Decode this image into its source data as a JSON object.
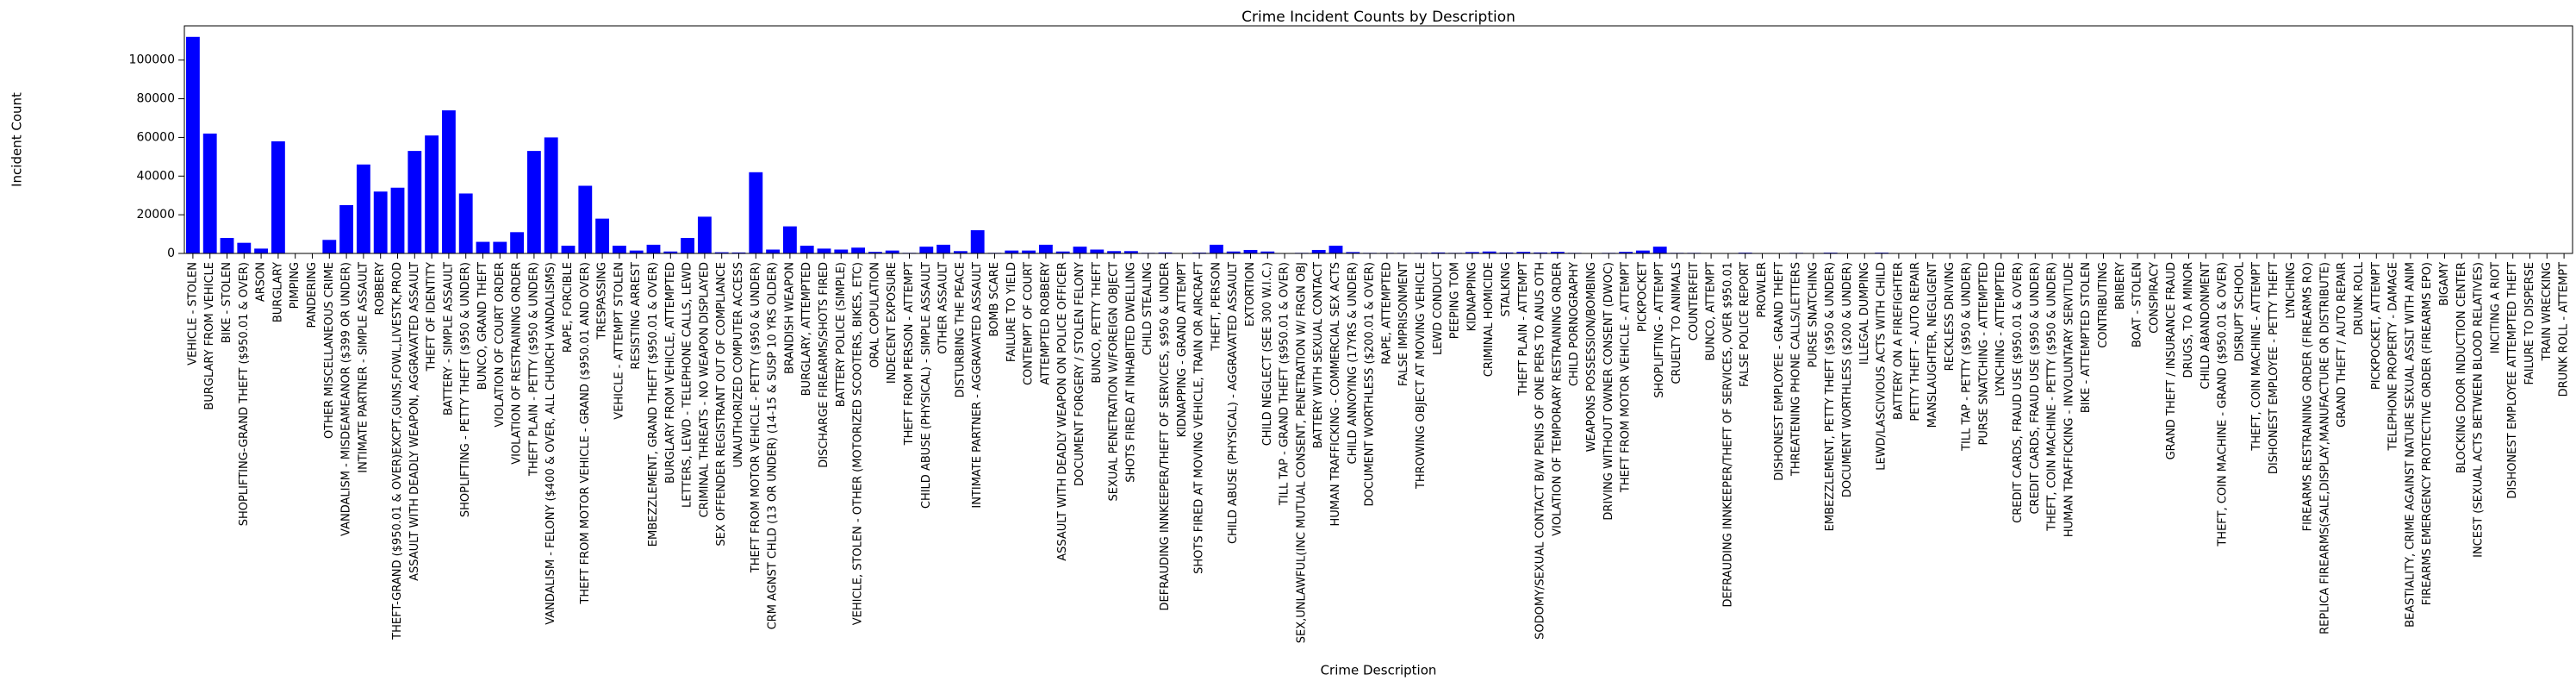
{
  "chart_data": {
    "type": "bar",
    "title": "Crime Incident Counts by Description",
    "x_label": "Crime Description",
    "y_label": "Incident Count",
    "color": "#0000ff",
    "grid": false,
    "ylim": [
      0,
      117700
    ],
    "yticks": [
      0,
      20000,
      40000,
      60000,
      80000,
      100000
    ],
    "categories": [
      "VEHICLE - STOLEN",
      "BURGLARY FROM VEHICLE",
      "BIKE - STOLEN",
      "SHOPLIFTING-GRAND THEFT ($950.01 & OVER)",
      "ARSON",
      "BURGLARY",
      "PIMPING",
      "PANDERING",
      "OTHER MISCELLANEOUS CRIME",
      "VANDALISM - MISDEAMEANOR ($399 OR UNDER)",
      "INTIMATE PARTNER - SIMPLE ASSAULT",
      "ROBBERY",
      "THEFT-GRAND ($950.01 & OVER)EXCPT,GUNS,FOWL,LIVESTK,PROD",
      "ASSAULT WITH DEADLY WEAPON, AGGRAVATED ASSAULT",
      "THEFT OF IDENTITY",
      "BATTERY - SIMPLE ASSAULT",
      "SHOPLIFTING - PETTY THEFT ($950 & UNDER)",
      "BUNCO, GRAND THEFT",
      "VIOLATION OF COURT ORDER",
      "VIOLATION OF RESTRAINING ORDER",
      "THEFT PLAIN - PETTY ($950 & UNDER)",
      "VANDALISM - FELONY ($400 & OVER, ALL CHURCH VANDALISMS)",
      "RAPE, FORCIBLE",
      "THEFT FROM MOTOR VEHICLE - GRAND ($950.01 AND OVER)",
      "TRESPASSING",
      "VEHICLE - ATTEMPT STOLEN",
      "RESISTING ARREST",
      "EMBEZZLEMENT, GRAND THEFT ($950.01 & OVER)",
      "BURGLARY FROM VEHICLE, ATTEMPTED",
      "LETTERS, LEWD  -  TELEPHONE CALLS, LEWD",
      "CRIMINAL THREATS - NO WEAPON DISPLAYED",
      "SEX OFFENDER REGISTRANT OUT OF COMPLIANCE",
      "UNAUTHORIZED COMPUTER ACCESS",
      "THEFT FROM MOTOR VEHICLE - PETTY ($950 & UNDER)",
      "CRM AGNST CHLD (13 OR UNDER) (14-15 & SUSP 10 YRS OLDER)",
      "BRANDISH WEAPON",
      "BURGLARY, ATTEMPTED",
      "DISCHARGE FIREARMS/SHOTS FIRED",
      "BATTERY POLICE (SIMPLE)",
      "VEHICLE, STOLEN - OTHER (MOTORIZED SCOOTERS, BIKES, ETC)",
      "ORAL COPULATION",
      "INDECENT EXPOSURE",
      "THEFT FROM PERSON - ATTEMPT",
      "CHILD ABUSE (PHYSICAL) - SIMPLE ASSAULT",
      "OTHER ASSAULT",
      "DISTURBING THE PEACE",
      "INTIMATE PARTNER - AGGRAVATED ASSAULT",
      "BOMB SCARE",
      "FAILURE TO YIELD",
      "CONTEMPT OF COURT",
      "ATTEMPTED ROBBERY",
      "ASSAULT WITH DEADLY WEAPON ON POLICE OFFICER",
      "DOCUMENT FORGERY / STOLEN FELONY",
      "BUNCO, PETTY THEFT",
      "SEXUAL PENETRATION W/FOREIGN OBJECT",
      "SHOTS FIRED AT INHABITED DWELLING",
      "CHILD STEALING",
      "DEFRAUDING INNKEEPER/THEFT OF SERVICES, $950 & UNDER",
      "KIDNAPPING - GRAND ATTEMPT",
      "SHOTS FIRED AT MOVING VEHICLE, TRAIN OR AIRCRAFT",
      "THEFT, PERSON",
      "CHILD ABUSE (PHYSICAL) - AGGRAVATED ASSAULT",
      "EXTORTION",
      "CHILD NEGLECT (SEE 300 W.I.C.)",
      "TILL TAP - GRAND THEFT ($950.01 & OVER)",
      "SEX,UNLAWFUL(INC MUTUAL CONSENT, PENETRATION W/ FRGN OBJ",
      "BATTERY WITH SEXUAL CONTACT",
      "HUMAN TRAFFICKING - COMMERCIAL SEX ACTS",
      "CHILD ANNOYING (17YRS & UNDER)",
      "DOCUMENT WORTHLESS ($200.01 & OVER)",
      "RAPE, ATTEMPTED",
      "FALSE IMPRISONMENT",
      "THROWING OBJECT AT MOVING VEHICLE",
      "LEWD CONDUCT",
      "PEEPING TOM",
      "KIDNAPPING",
      "CRIMINAL HOMICIDE",
      "STALKING",
      "THEFT PLAIN - ATTEMPT",
      "SODOMY/SEXUAL CONTACT B/W PENIS OF ONE PERS TO ANUS OTH",
      "VIOLATION OF TEMPORARY RESTRAINING ORDER",
      "CHILD PORNOGRAPHY",
      "WEAPONS POSSESSION/BOMBING",
      "DRIVING WITHOUT OWNER CONSENT (DWOC)",
      "THEFT FROM MOTOR VEHICLE - ATTEMPT",
      "PICKPOCKET",
      "SHOPLIFTING - ATTEMPT",
      "CRUELTY TO ANIMALS",
      "COUNTERFEIT",
      "BUNCO, ATTEMPT",
      "DEFRAUDING INNKEEPER/THEFT OF SERVICES, OVER $950.01",
      "FALSE POLICE REPORT",
      "PROWLER",
      "DISHONEST EMPLOYEE - GRAND THEFT",
      "THREATENING PHONE CALLS/LETTERS",
      "PURSE SNATCHING",
      "EMBEZZLEMENT, PETTY THEFT ($950 & UNDER)",
      "DOCUMENT WORTHLESS ($200 & UNDER)",
      "ILLEGAL DUMPING",
      "LEWD/LASCIVIOUS ACTS WITH CHILD",
      "BATTERY ON A FIREFIGHTER",
      "PETTY THEFT - AUTO REPAIR",
      "MANSLAUGHTER, NEGLIGENT",
      "RECKLESS DRIVING",
      "TILL TAP - PETTY ($950 & UNDER)",
      "PURSE SNATCHING - ATTEMPTED",
      "LYNCHING - ATTEMPTED",
      "CREDIT CARDS, FRAUD USE ($950.01 & OVER)",
      "CREDIT CARDS, FRAUD USE ($950 & UNDER)",
      "THEFT, COIN MACHINE - PETTY ($950 & UNDER)",
      "HUMAN TRAFFICKING - INVOLUNTARY SERVITUDE",
      "BIKE - ATTEMPTED STOLEN",
      "CONTRIBUTING",
      "BRIBERY",
      "BOAT - STOLEN",
      "CONSPIRACY",
      "GRAND THEFT / INSURANCE FRAUD",
      "DRUGS, TO A MINOR",
      "CHILD ABANDONMENT",
      "THEFT, COIN MACHINE - GRAND ($950.01 & OVER)",
      "DISRUPT SCHOOL",
      "THEFT, COIN MACHINE - ATTEMPT",
      "DISHONEST EMPLOYEE - PETTY THEFT",
      "LYNCHING",
      "FIREARMS RESTRAINING ORDER (FIREARMS RO)",
      "REPLICA FIREARMS(SALE,DISPLAY,MANUFACTURE OR DISTRIBUTE)",
      "GRAND THEFT / AUTO REPAIR",
      "DRUNK ROLL",
      "PICKPOCKET, ATTEMPT",
      "TELEPHONE PROPERTY - DAMAGE",
      "BEASTIALITY, CRIME AGAINST NATURE SEXUAL ASSLT WITH ANIM",
      "FIREARMS EMERGENCY PROTECTIVE ORDER (FIREARMS EPO)",
      "BIGAMY",
      "BLOCKING DOOR INDUCTION CENTER",
      "INCEST (SEXUAL ACTS BETWEEN BLOOD RELATIVES)",
      "INCITING A RIOT",
      "DISHONEST EMPLOYEE ATTEMPTED THEFT",
      "FAILURE TO DISPERSE",
      "TRAIN WRECKING",
      "DRUNK ROLL - ATTEMPT"
    ],
    "values": [
      112000,
      62000,
      8000,
      5500,
      2500,
      58000,
      200,
      100,
      7000,
      25000,
      46000,
      32000,
      34000,
      53000,
      61000,
      74000,
      31000,
      6000,
      6000,
      11000,
      53000,
      60000,
      4000,
      35000,
      18000,
      4000,
      1500,
      4500,
      1000,
      8000,
      19000,
      600,
      500,
      42000,
      2000,
      14000,
      4000,
      2500,
      2000,
      3000,
      800,
      1500,
      300,
      3500,
      4500,
      1200,
      12000,
      300,
      1500,
      1500,
      4500,
      1000,
      3500,
      2000,
      1200,
      1200,
      300,
      500,
      200,
      400,
      4500,
      1000,
      1800,
      1000,
      100,
      300,
      1800,
      4000,
      700,
      300,
      300,
      300,
      300,
      500,
      300,
      700,
      1000,
      500,
      800,
      500,
      800,
      300,
      100,
      300,
      800,
      1500,
      3500,
      300,
      300,
      200,
      200,
      400,
      100,
      200,
      300,
      200,
      400,
      100,
      100,
      400,
      100,
      100,
      50,
      100,
      50,
      50,
      50,
      50,
      50,
      50,
      50,
      50,
      50,
      30,
      100,
      50,
      30,
      30,
      50,
      30,
      30,
      20,
      30,
      50,
      20,
      20,
      20,
      20,
      10,
      10,
      10,
      10,
      10,
      5,
      5,
      5,
      5,
      5,
      5,
      5
    ]
  }
}
